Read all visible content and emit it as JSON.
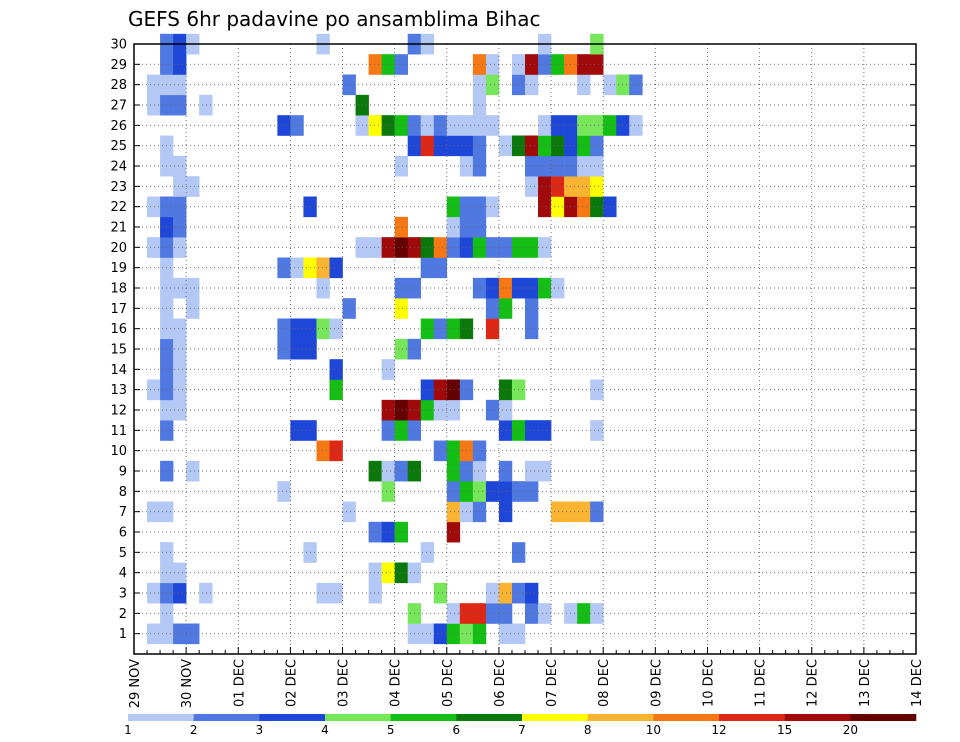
{
  "chart_data": {
    "type": "heatmap",
    "title": "GEFS 6hr padavine po ansamblima Bihac",
    "xlabel": "",
    "ylabel": "",
    "x_ticks": [
      "29 NOV",
      "30 NOV",
      "01 DEC",
      "02 DEC",
      "03 DEC",
      "04 DEC",
      "05 DEC",
      "06 DEC",
      "07 DEC",
      "08 DEC",
      "09 DEC",
      "10 DEC",
      "11 DEC",
      "12 DEC",
      "13 DEC",
      "14 DEC"
    ],
    "y_ticks": [
      "1",
      "2",
      "3",
      "4",
      "5",
      "6",
      "7",
      "8",
      "9",
      "10",
      "11",
      "12",
      "13",
      "14",
      "15",
      "16",
      "17",
      "18",
      "19",
      "20",
      "21",
      "22",
      "23",
      "24",
      "25",
      "26",
      "27",
      "28",
      "29",
      "30"
    ],
    "ylim": [
      0,
      30
    ],
    "grid": true,
    "x_unit": "6h steps from 29 NOV 00UTC",
    "levels": [
      "1",
      "2",
      "3",
      "4",
      "5",
      "6",
      "7",
      "8",
      "10",
      "12",
      "15",
      "20"
    ],
    "colors": [
      "#b4c8f5",
      "#5078e1",
      "#1e46d7",
      "#78e65a",
      "#14be14",
      "#0a780a",
      "#ffff00",
      "#fab432",
      "#f57814",
      "#dc2814",
      "#a00a0a",
      "#640000"
    ],
    "cells": [
      [
        1,
        1,
        1
      ],
      [
        1,
        2,
        1
      ],
      [
        1,
        3,
        2
      ],
      [
        1,
        4,
        2
      ],
      [
        1,
        21,
        1
      ],
      [
        1,
        22,
        1
      ],
      [
        1,
        23,
        3
      ],
      [
        1,
        24,
        5
      ],
      [
        1,
        25,
        4
      ],
      [
        1,
        26,
        5
      ],
      [
        1,
        28,
        1
      ],
      [
        1,
        29,
        1
      ],
      [
        2,
        2,
        1
      ],
      [
        2,
        21,
        4
      ],
      [
        2,
        24,
        1
      ],
      [
        2,
        25,
        10
      ],
      [
        2,
        26,
        10
      ],
      [
        2,
        27,
        2
      ],
      [
        2,
        28,
        2
      ],
      [
        2,
        30,
        2
      ],
      [
        2,
        31,
        1
      ],
      [
        2,
        33,
        1
      ],
      [
        2,
        34,
        5
      ],
      [
        2,
        35,
        1
      ],
      [
        3,
        1,
        1
      ],
      [
        3,
        2,
        2
      ],
      [
        3,
        3,
        3
      ],
      [
        3,
        5,
        1
      ],
      [
        3,
        14,
        1
      ],
      [
        3,
        15,
        1
      ],
      [
        3,
        18,
        1
      ],
      [
        3,
        23,
        4
      ],
      [
        3,
        27,
        1
      ],
      [
        3,
        28,
        8
      ],
      [
        3,
        29,
        2
      ],
      [
        3,
        30,
        3
      ],
      [
        4,
        2,
        1
      ],
      [
        4,
        3,
        1
      ],
      [
        4,
        18,
        1
      ],
      [
        4,
        19,
        7
      ],
      [
        4,
        20,
        6
      ],
      [
        4,
        21,
        1
      ],
      [
        5,
        2,
        1
      ],
      [
        5,
        13,
        1
      ],
      [
        5,
        22,
        1
      ],
      [
        5,
        29,
        2
      ],
      [
        6,
        18,
        2
      ],
      [
        6,
        19,
        3
      ],
      [
        6,
        20,
        5
      ],
      [
        6,
        24,
        11
      ],
      [
        7,
        1,
        1
      ],
      [
        7,
        2,
        1
      ],
      [
        7,
        16,
        1
      ],
      [
        7,
        24,
        8
      ],
      [
        7,
        25,
        1
      ],
      [
        7,
        26,
        2
      ],
      [
        7,
        28,
        3
      ],
      [
        7,
        32,
        8
      ],
      [
        7,
        33,
        8
      ],
      [
        7,
        34,
        8
      ],
      [
        7,
        35,
        2
      ],
      [
        8,
        11,
        1
      ],
      [
        8,
        19,
        4
      ],
      [
        8,
        24,
        2
      ],
      [
        8,
        25,
        5
      ],
      [
        8,
        26,
        4
      ],
      [
        8,
        27,
        3
      ],
      [
        8,
        28,
        3
      ],
      [
        8,
        29,
        2
      ],
      [
        8,
        30,
        2
      ],
      [
        9,
        2,
        2
      ],
      [
        9,
        4,
        1
      ],
      [
        9,
        18,
        6
      ],
      [
        9,
        19,
        1
      ],
      [
        9,
        20,
        2
      ],
      [
        9,
        21,
        6
      ],
      [
        9,
        24,
        5
      ],
      [
        9,
        25,
        2
      ],
      [
        9,
        26,
        1
      ],
      [
        9,
        28,
        2
      ],
      [
        9,
        30,
        1
      ],
      [
        9,
        31,
        1
      ],
      [
        10,
        14,
        9
      ],
      [
        10,
        15,
        10
      ],
      [
        10,
        23,
        2
      ],
      [
        10,
        24,
        5
      ],
      [
        10,
        25,
        9
      ],
      [
        10,
        26,
        2
      ],
      [
        11,
        2,
        2
      ],
      [
        11,
        12,
        3
      ],
      [
        11,
        13,
        3
      ],
      [
        11,
        19,
        2
      ],
      [
        11,
        20,
        5
      ],
      [
        11,
        21,
        2
      ],
      [
        11,
        28,
        3
      ],
      [
        11,
        29,
        5
      ],
      [
        11,
        30,
        3
      ],
      [
        11,
        31,
        3
      ],
      [
        11,
        35,
        1
      ],
      [
        12,
        2,
        1
      ],
      [
        12,
        3,
        1
      ],
      [
        12,
        19,
        11
      ],
      [
        12,
        20,
        12
      ],
      [
        12,
        21,
        11
      ],
      [
        12,
        22,
        5
      ],
      [
        12,
        23,
        1
      ],
      [
        12,
        24,
        1
      ],
      [
        12,
        27,
        2
      ],
      [
        12,
        28,
        1
      ],
      [
        13,
        1,
        1
      ],
      [
        13,
        2,
        2
      ],
      [
        13,
        3,
        1
      ],
      [
        13,
        15,
        5
      ],
      [
        13,
        22,
        3
      ],
      [
        13,
        23,
        11
      ],
      [
        13,
        24,
        12
      ],
      [
        13,
        25,
        2
      ],
      [
        13,
        28,
        6
      ],
      [
        13,
        29,
        4
      ],
      [
        13,
        35,
        1
      ],
      [
        14,
        2,
        2
      ],
      [
        14,
        3,
        1
      ],
      [
        14,
        15,
        3
      ],
      [
        14,
        19,
        1
      ],
      [
        15,
        2,
        2
      ],
      [
        15,
        3,
        1
      ],
      [
        15,
        11,
        2
      ],
      [
        15,
        12,
        3
      ],
      [
        15,
        13,
        3
      ],
      [
        15,
        20,
        4
      ],
      [
        15,
        21,
        2
      ],
      [
        16,
        2,
        1
      ],
      [
        16,
        3,
        1
      ],
      [
        16,
        11,
        2
      ],
      [
        16,
        12,
        3
      ],
      [
        16,
        13,
        3
      ],
      [
        16,
        14,
        4
      ],
      [
        16,
        15,
        1
      ],
      [
        16,
        22,
        5
      ],
      [
        16,
        23,
        2
      ],
      [
        16,
        24,
        5
      ],
      [
        16,
        25,
        6
      ],
      [
        16,
        27,
        10
      ],
      [
        16,
        30,
        2
      ],
      [
        17,
        2,
        1
      ],
      [
        17,
        4,
        1
      ],
      [
        17,
        16,
        2
      ],
      [
        17,
        20,
        7
      ],
      [
        17,
        27,
        2
      ],
      [
        17,
        28,
        5
      ],
      [
        17,
        30,
        2
      ],
      [
        18,
        2,
        1
      ],
      [
        18,
        3,
        1
      ],
      [
        18,
        4,
        1
      ],
      [
        18,
        14,
        1
      ],
      [
        18,
        20,
        2
      ],
      [
        18,
        21,
        2
      ],
      [
        18,
        26,
        2
      ],
      [
        18,
        27,
        3
      ],
      [
        18,
        28,
        9
      ],
      [
        18,
        29,
        3
      ],
      [
        18,
        30,
        3
      ],
      [
        18,
        31,
        5
      ],
      [
        18,
        32,
        1
      ],
      [
        19,
        2,
        1
      ],
      [
        19,
        11,
        2
      ],
      [
        19,
        12,
        1
      ],
      [
        19,
        13,
        7
      ],
      [
        19,
        14,
        8
      ],
      [
        19,
        15,
        3
      ],
      [
        19,
        22,
        2
      ],
      [
        19,
        23,
        2
      ],
      [
        20,
        1,
        1
      ],
      [
        20,
        2,
        2
      ],
      [
        20,
        3,
        1
      ],
      [
        20,
        17,
        1
      ],
      [
        20,
        18,
        1
      ],
      [
        20,
        19,
        11
      ],
      [
        20,
        20,
        12
      ],
      [
        20,
        21,
        11
      ],
      [
        20,
        22,
        6
      ],
      [
        20,
        23,
        9
      ],
      [
        20,
        24,
        2
      ],
      [
        20,
        25,
        3
      ],
      [
        20,
        26,
        5
      ],
      [
        20,
        27,
        2
      ],
      [
        20,
        28,
        2
      ],
      [
        20,
        29,
        5
      ],
      [
        20,
        30,
        5
      ],
      [
        20,
        31,
        1
      ],
      [
        21,
        2,
        3
      ],
      [
        21,
        3,
        2
      ],
      [
        21,
        20,
        9
      ],
      [
        21,
        24,
        1
      ],
      [
        21,
        25,
        2
      ],
      [
        21,
        26,
        2
      ],
      [
        22,
        1,
        1
      ],
      [
        22,
        2,
        2
      ],
      [
        22,
        3,
        2
      ],
      [
        22,
        13,
        3
      ],
      [
        22,
        24,
        5
      ],
      [
        22,
        25,
        2
      ],
      [
        22,
        26,
        2
      ],
      [
        22,
        27,
        1
      ],
      [
        22,
        31,
        11
      ],
      [
        22,
        32,
        7
      ],
      [
        22,
        33,
        11
      ],
      [
        22,
        34,
        9
      ],
      [
        22,
        35,
        6
      ],
      [
        22,
        36,
        3
      ],
      [
        23,
        3,
        1
      ],
      [
        23,
        4,
        1
      ],
      [
        23,
        30,
        1
      ],
      [
        23,
        31,
        11
      ],
      [
        23,
        32,
        10
      ],
      [
        23,
        33,
        8
      ],
      [
        23,
        34,
        8
      ],
      [
        23,
        35,
        7
      ],
      [
        24,
        2,
        1
      ],
      [
        24,
        3,
        1
      ],
      [
        24,
        20,
        1
      ],
      [
        24,
        25,
        1
      ],
      [
        24,
        26,
        2
      ],
      [
        24,
        30,
        2
      ],
      [
        24,
        31,
        2
      ],
      [
        24,
        32,
        2
      ],
      [
        24,
        33,
        2
      ],
      [
        24,
        34,
        1
      ],
      [
        24,
        35,
        1
      ],
      [
        25,
        2,
        1
      ],
      [
        25,
        21,
        3
      ],
      [
        25,
        22,
        10
      ],
      [
        25,
        23,
        3
      ],
      [
        25,
        24,
        3
      ],
      [
        25,
        25,
        3
      ],
      [
        25,
        26,
        2
      ],
      [
        25,
        28,
        1
      ],
      [
        25,
        29,
        6
      ],
      [
        25,
        30,
        11
      ],
      [
        25,
        31,
        5
      ],
      [
        25,
        32,
        6
      ],
      [
        25,
        33,
        3
      ],
      [
        25,
        34,
        5
      ],
      [
        25,
        35,
        2
      ],
      [
        26,
        11,
        3
      ],
      [
        26,
        12,
        2
      ],
      [
        26,
        17,
        1
      ],
      [
        26,
        18,
        7
      ],
      [
        26,
        19,
        6
      ],
      [
        26,
        20,
        5
      ],
      [
        26,
        21,
        2
      ],
      [
        26,
        22,
        1
      ],
      [
        26,
        23,
        2
      ],
      [
        26,
        24,
        1
      ],
      [
        26,
        25,
        1
      ],
      [
        26,
        26,
        1
      ],
      [
        26,
        27,
        1
      ],
      [
        26,
        31,
        1
      ],
      [
        26,
        32,
        3
      ],
      [
        26,
        33,
        3
      ],
      [
        26,
        34,
        4
      ],
      [
        26,
        35,
        4
      ],
      [
        26,
        36,
        5
      ],
      [
        26,
        37,
        3
      ],
      [
        26,
        38,
        1
      ],
      [
        27,
        1,
        1
      ],
      [
        27,
        2,
        2
      ],
      [
        27,
        3,
        2
      ],
      [
        27,
        5,
        1
      ],
      [
        27,
        17,
        6
      ],
      [
        27,
        26,
        1
      ],
      [
        28,
        1,
        1
      ],
      [
        28,
        2,
        1
      ],
      [
        28,
        3,
        1
      ],
      [
        28,
        16,
        2
      ],
      [
        28,
        26,
        1
      ],
      [
        28,
        27,
        4
      ],
      [
        28,
        29,
        2
      ],
      [
        28,
        30,
        1
      ],
      [
        28,
        34,
        1
      ],
      [
        28,
        36,
        1
      ],
      [
        28,
        37,
        4
      ],
      [
        28,
        38,
        2
      ],
      [
        29,
        2,
        2
      ],
      [
        29,
        3,
        3
      ],
      [
        29,
        18,
        9
      ],
      [
        29,
        19,
        5
      ],
      [
        29,
        20,
        2
      ],
      [
        29,
        26,
        9
      ],
      [
        29,
        27,
        1
      ],
      [
        29,
        29,
        1
      ],
      [
        29,
        30,
        11
      ],
      [
        29,
        31,
        2
      ],
      [
        29,
        32,
        5
      ],
      [
        29,
        33,
        9
      ],
      [
        29,
        34,
        11
      ],
      [
        29,
        35,
        11
      ],
      [
        30,
        2,
        2
      ],
      [
        30,
        3,
        3
      ],
      [
        30,
        4,
        1
      ],
      [
        30,
        14,
        1
      ],
      [
        30,
        21,
        2
      ],
      [
        30,
        22,
        1
      ],
      [
        30,
        31,
        1
      ],
      [
        30,
        35,
        4
      ]
    ]
  }
}
